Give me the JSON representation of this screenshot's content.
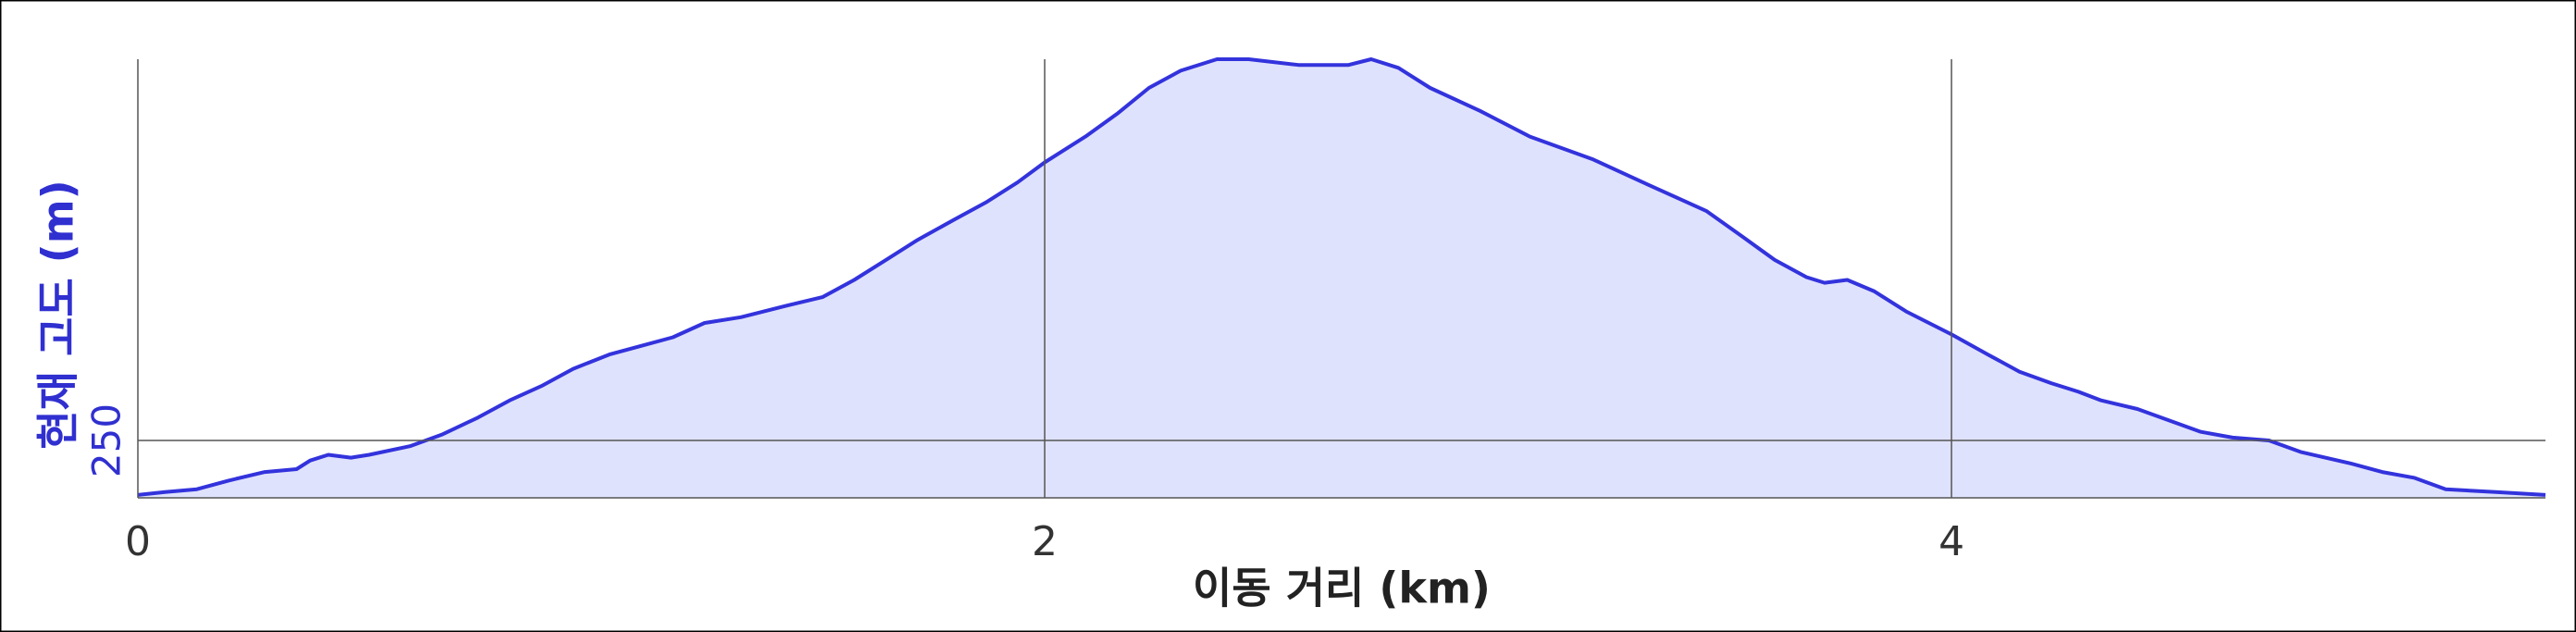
{
  "chart_data": {
    "type": "area",
    "xlabel": "이동 거리 (km)",
    "ylabel": "현재 고도 (m)",
    "x": [
      0,
      0.06,
      0.13,
      0.2,
      0.28,
      0.35,
      0.38,
      0.42,
      0.47,
      0.51,
      0.6,
      0.67,
      0.75,
      0.82,
      0.89,
      0.96,
      1.04,
      1.11,
      1.18,
      1.25,
      1.33,
      1.43,
      1.51,
      1.58,
      1.65,
      1.72,
      1.8,
      1.87,
      1.94,
      2,
      2.09,
      2.16,
      2.23,
      2.3,
      2.38,
      2.45,
      2.56,
      2.67,
      2.72,
      2.78,
      2.85,
      2.96,
      3.07,
      3.14,
      3.21,
      3.32,
      3.39,
      3.46,
      3.54,
      3.61,
      3.68,
      3.72,
      3.77,
      3.83,
      3.9,
      4,
      4.08,
      4.15,
      4.22,
      4.28,
      4.33,
      4.41,
      4.48,
      4.55,
      4.62,
      4.7,
      4.77,
      4.88,
      4.95,
      5.02,
      5.09,
      5.2,
      5.31
    ],
    "series": [
      {
        "name": "현재 고도",
        "color": "#3333dd",
        "fill": "#dfe2fc",
        "values": [
          231,
          232,
          233,
          236,
          239,
          240,
          243,
          245,
          244,
          245,
          248,
          252,
          258,
          264,
          269,
          275,
          280,
          283,
          286,
          291,
          293,
          297,
          300,
          306,
          313,
          320,
          327,
          333,
          340,
          347,
          356,
          364,
          373,
          379,
          383,
          383,
          381,
          381,
          383,
          380,
          373,
          365,
          356,
          352,
          348,
          340,
          335,
          330,
          321,
          313,
          307,
          305,
          306,
          302,
          295,
          287,
          280,
          274,
          270,
          267,
          264,
          261,
          257,
          253,
          251,
          250,
          246,
          242,
          239,
          237,
          233,
          232,
          231
        ]
      }
    ],
    "xlim": [
      0,
      5.31
    ],
    "xticks": [
      0,
      2,
      4
    ],
    "ylim": [
      230,
      383
    ],
    "yticks": [
      250
    ],
    "grid": true
  }
}
